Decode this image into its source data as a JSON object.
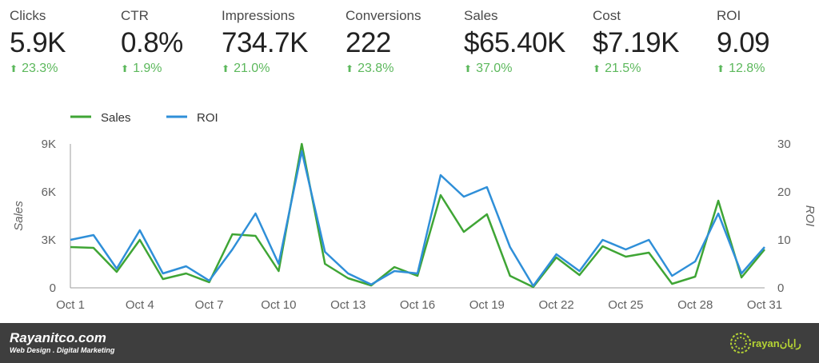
{
  "colors": {
    "up": "#5cb85c",
    "sales": "#3fa535",
    "roi": "#2f8fd8"
  },
  "kpis": [
    {
      "label": "Clicks",
      "value": "5.9K",
      "delta": "23.3%"
    },
    {
      "label": "CTR",
      "value": "0.8%",
      "delta": "1.9%"
    },
    {
      "label": "Impressions",
      "value": "734.7K",
      "delta": "21.0%"
    },
    {
      "label": "Conversions",
      "value": "222",
      "delta": "23.8%"
    },
    {
      "label": "Sales",
      "value": "$65.40K",
      "delta": "37.0%"
    },
    {
      "label": "Cost",
      "value": "$7.19K",
      "delta": "21.5%"
    },
    {
      "label": "ROI",
      "value": "9.09",
      "delta": "12.8%"
    }
  ],
  "chart_data": {
    "type": "line",
    "x": [
      "Oct 1",
      "Oct 2",
      "Oct 3",
      "Oct 4",
      "Oct 5",
      "Oct 6",
      "Oct 7",
      "Oct 8",
      "Oct 9",
      "Oct 10",
      "Oct 11",
      "Oct 12",
      "Oct 13",
      "Oct 14",
      "Oct 15",
      "Oct 16",
      "Oct 17",
      "Oct 18",
      "Oct 19",
      "Oct 20",
      "Oct 21",
      "Oct 22",
      "Oct 23",
      "Oct 24",
      "Oct 25",
      "Oct 26",
      "Oct 27",
      "Oct 28",
      "Oct 29",
      "Oct 30",
      "Oct 31"
    ],
    "x_tick_labels": [
      "Oct 1",
      "Oct 4",
      "Oct 7",
      "Oct 10",
      "Oct 13",
      "Oct 16",
      "Oct 19",
      "Oct 22",
      "Oct 25",
      "Oct 28",
      "Oct 31"
    ],
    "series": [
      {
        "name": "Sales",
        "axis": "left",
        "color": "#3fa535",
        "values": [
          2550,
          2500,
          1000,
          3000,
          550,
          900,
          350,
          3350,
          3250,
          1050,
          9000,
          1500,
          600,
          150,
          1300,
          750,
          5800,
          3500,
          4600,
          750,
          50,
          1900,
          800,
          2600,
          1950,
          2200,
          250,
          700,
          5450,
          650,
          2400
        ]
      },
      {
        "name": "ROI",
        "axis": "right",
        "color": "#2f8fd8",
        "values": [
          10,
          11,
          4,
          12,
          3,
          4.5,
          1.5,
          8,
          15.5,
          5,
          28.5,
          7.5,
          3,
          0.7,
          3.5,
          3,
          23.5,
          19,
          21,
          8.5,
          0.4,
          7,
          3.5,
          10,
          8,
          10,
          2.5,
          5.5,
          15.5,
          3,
          8.5
        ]
      }
    ],
    "ylabel": "Sales",
    "y2label": "ROI",
    "ylim": [
      0,
      9000
    ],
    "y2lim": [
      0,
      30
    ],
    "y_ticks": [
      "0",
      "3K",
      "6K",
      "9K"
    ],
    "y2_ticks": [
      "0",
      "10",
      "20",
      "30"
    ],
    "legend_position": "top-left",
    "grid": false
  },
  "footer": {
    "site": "Rayanitco.com",
    "tagline": "Web Design . Digital Marketing",
    "logo_text": "rayanرایان"
  }
}
